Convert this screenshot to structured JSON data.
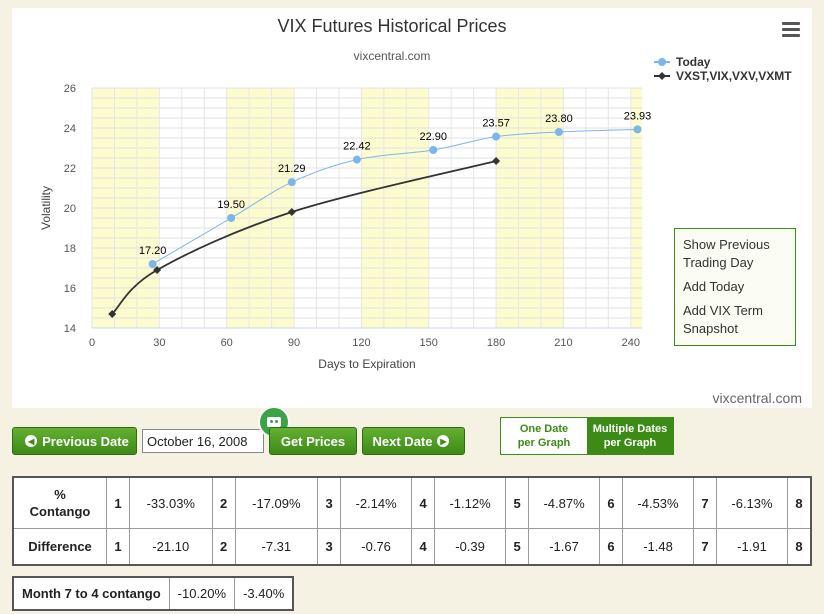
{
  "chart": {
    "menu_items": [
      "Show Previous Trading Day",
      "Add Today",
      "Add VIX Term Snapshot"
    ],
    "watermark": "vixcentral.com"
  },
  "chart_data": {
    "type": "line",
    "title": "VIX Futures Historical Prices",
    "subtitle": "vixcentral.com",
    "xlabel": "Days to Expiration",
    "ylabel": "Volatility",
    "xlim": [
      0,
      245
    ],
    "ylim": [
      14,
      26
    ],
    "xticks": [
      0,
      30,
      60,
      90,
      120,
      150,
      180,
      210,
      240
    ],
    "yticks": [
      14,
      16,
      18,
      20,
      22,
      24,
      26
    ],
    "legend_position": "top-right",
    "grid": true,
    "series": [
      {
        "name": "Today",
        "color": "#7cb5ec",
        "marker": "circle",
        "points": [
          [
            27,
            17.2
          ],
          [
            62,
            19.5
          ],
          [
            89,
            21.29
          ],
          [
            118,
            22.42
          ],
          [
            152,
            22.9
          ],
          [
            180,
            23.57
          ],
          [
            208,
            23.8
          ],
          [
            243,
            23.93
          ]
        ],
        "labels": [
          "17.20",
          "19.50",
          "21.29",
          "22.42",
          "22.90",
          "23.57",
          "23.80",
          "23.93"
        ]
      },
      {
        "name": "VXST,VIX,VXV,VXMT",
        "color": "#333333",
        "marker": "diamond",
        "points": [
          [
            9,
            14.7
          ],
          [
            29,
            16.9
          ],
          [
            89,
            19.8
          ],
          [
            180,
            22.35
          ]
        ]
      }
    ]
  },
  "controls": {
    "prev_label": "Previous Date",
    "date_value": "October 16, 2008",
    "get_prices_label": "Get Prices",
    "next_label": "Next Date",
    "toggle_one": "One Date per Graph",
    "toggle_multi": "Multiple Dates per Graph",
    "toggle_one_l1": "One Date",
    "toggle_one_l2": "per Graph",
    "toggle_multi_l1": "Multiple Dates",
    "toggle_multi_l2": "per Graph"
  },
  "table": {
    "contango_label_l1": "%",
    "contango_label_l2": "Contango",
    "difference_label": "Difference",
    "indices": [
      "1",
      "2",
      "3",
      "4",
      "5",
      "6",
      "7",
      "8"
    ],
    "contango": [
      "-33.03%",
      "-17.09%",
      "-2.14%",
      "-1.12%",
      "-4.87%",
      "-4.53%",
      "-6.13%",
      ""
    ],
    "difference": [
      "-21.10",
      "-7.31",
      "-0.76",
      "-0.39",
      "-1.67",
      "-1.48",
      "-1.91",
      ""
    ]
  },
  "summary": {
    "label": "Month 7 to 4 contango",
    "values": [
      "-10.20%",
      "-3.40%"
    ]
  }
}
